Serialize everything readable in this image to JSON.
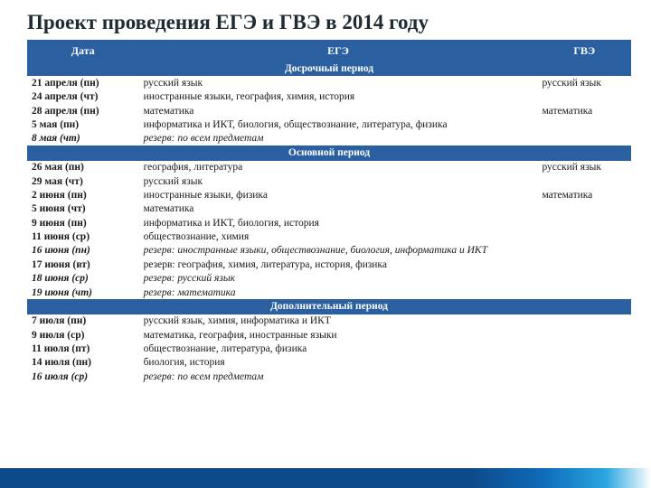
{
  "title": "Проект проведения ЕГЭ и ГВЭ в 2014 году",
  "headers": {
    "date": "Дата",
    "ege": "ЕГЭ",
    "gve": "ГВЭ"
  },
  "sections": [
    {
      "label": "Досрочный период",
      "rows": [
        {
          "date": "21 апреля (пн)",
          "ege": "русский язык",
          "gve": "русский язык"
        },
        {
          "date": "24 апреля (чт)",
          "ege": "иностранные языки, география, химия, история",
          "gve": ""
        },
        {
          "date": "28 апреля (пн)",
          "ege": "математика",
          "gve": "математика"
        },
        {
          "date": "5 мая (пн)",
          "ege": "информатика и ИКТ, биология, обществознание, литература, физика",
          "gve": ""
        },
        {
          "date": "8 мая (чт)",
          "ege": "резерв: по всем предметам",
          "gve": "",
          "italic": true
        }
      ]
    },
    {
      "label": "Основной период",
      "rows": [
        {
          "date": "26 мая (пн)",
          "ege": "география, литература",
          "gve": "русский язык"
        },
        {
          "date": "29 мая (чт)",
          "ege": "русский язык",
          "gve": ""
        },
        {
          "date": "2 июня (пн)",
          "ege": "иностранные языки, физика",
          "gve": "математика"
        },
        {
          "date": "5 июня (чт)",
          "ege": "математика",
          "gve": ""
        },
        {
          "date": "9 июня (пн)",
          "ege": "информатика и ИКТ, биология, история",
          "gve": ""
        },
        {
          "date": "11 июня (ср)",
          "ege": "обществознание, химия",
          "gve": ""
        },
        {
          "date": "16 июня (пн)",
          "ege": "резерв: иностранные языки, обществознание, биология, информатика и ИКТ",
          "gve": "",
          "italic": true
        },
        {
          "date": "17 июня (вт)",
          "ege": "резерв: география, химия, литература, история, физика",
          "gve": ""
        },
        {
          "date": "18 июня (ср)",
          "ege": "резерв: русский язык",
          "gve": "",
          "italic": true
        },
        {
          "date": "19 июня (чт)",
          "ege": "резерв: математика",
          "gve": "",
          "italic": true
        }
      ]
    },
    {
      "label": "Дополнительный период",
      "rows": [
        {
          "date": "7 июля (пн)",
          "ege": "русский язык, химия, информатика и ИКТ",
          "gve": ""
        },
        {
          "date": "9 июля (ср)",
          "ege": "математика, география, иностранные языки",
          "gve": ""
        },
        {
          "date": "11 июля (пт)",
          "ege": "обществознание, литература, физика",
          "gve": ""
        },
        {
          "date": "14 июля (пн)",
          "ege": "биология, история",
          "gve": ""
        },
        {
          "date": "16 июля (ср)",
          "ege": "резерв: по всем предметам",
          "gve": "",
          "italic": true
        }
      ]
    }
  ],
  "colors": {
    "header_bg": "#2a60a0",
    "header_fg": "#ffffff",
    "footer_dark": "#0d4a8a",
    "footer_light": "#2aa6e0"
  }
}
